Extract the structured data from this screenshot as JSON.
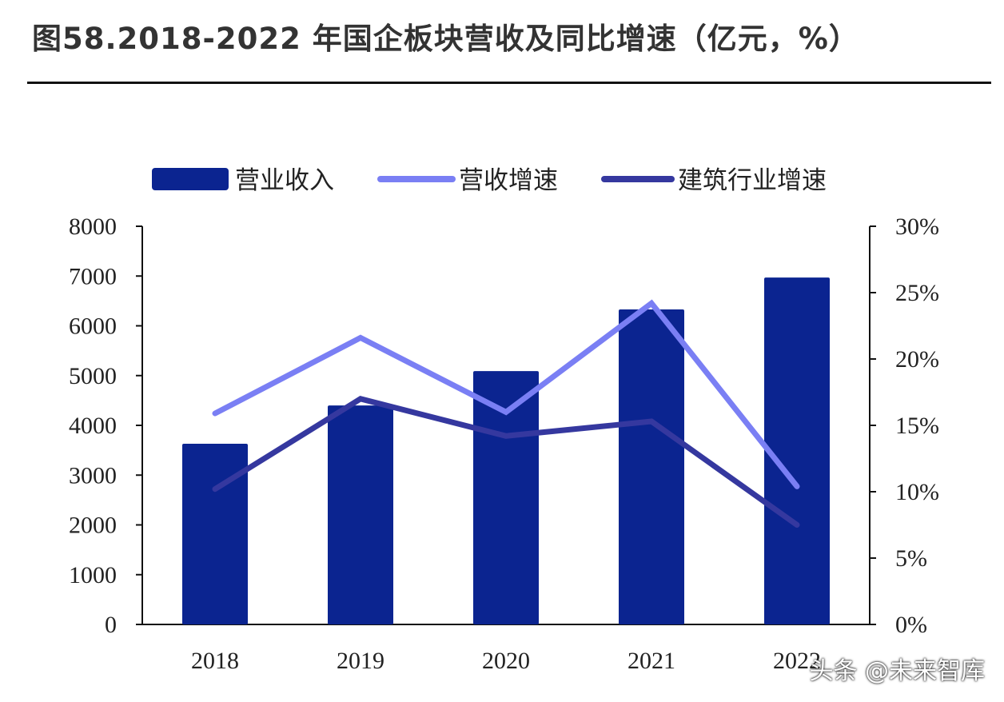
{
  "title": "图58.2018-2022 年国企板块营收及同比增速（亿元，%）",
  "watermark": "头条 @未来智库",
  "chart_data": {
    "type": "bar",
    "title": "图58.2018-2022 年国企板块营收及同比增速（亿元，%）",
    "categories": [
      "2018",
      "2019",
      "2020",
      "2021",
      "2022"
    ],
    "series": [
      {
        "name": "营业收入",
        "type": "bar",
        "axis": "left",
        "color": "#0b2490",
        "values": [
          3630,
          4400,
          5090,
          6330,
          6970
        ]
      },
      {
        "name": "营收增速",
        "type": "line",
        "axis": "right",
        "color": "#7a7ff4",
        "values": [
          15.9,
          21.6,
          16.0,
          24.2,
          10.4
        ]
      },
      {
        "name": "建筑行业增速",
        "type": "line",
        "axis": "right",
        "color": "#35389f",
        "values": [
          10.2,
          17.0,
          14.2,
          15.3,
          7.5
        ]
      }
    ],
    "y_left": {
      "ylim": [
        0,
        8000
      ],
      "ticks": [
        "0",
        "1000",
        "2000",
        "3000",
        "4000",
        "5000",
        "6000",
        "7000",
        "8000"
      ]
    },
    "y_right": {
      "ylim": [
        0,
        30
      ],
      "ticks": [
        "0%",
        "5%",
        "10%",
        "15%",
        "20%",
        "25%",
        "30%"
      ]
    },
    "grid": false,
    "legend": "top"
  }
}
